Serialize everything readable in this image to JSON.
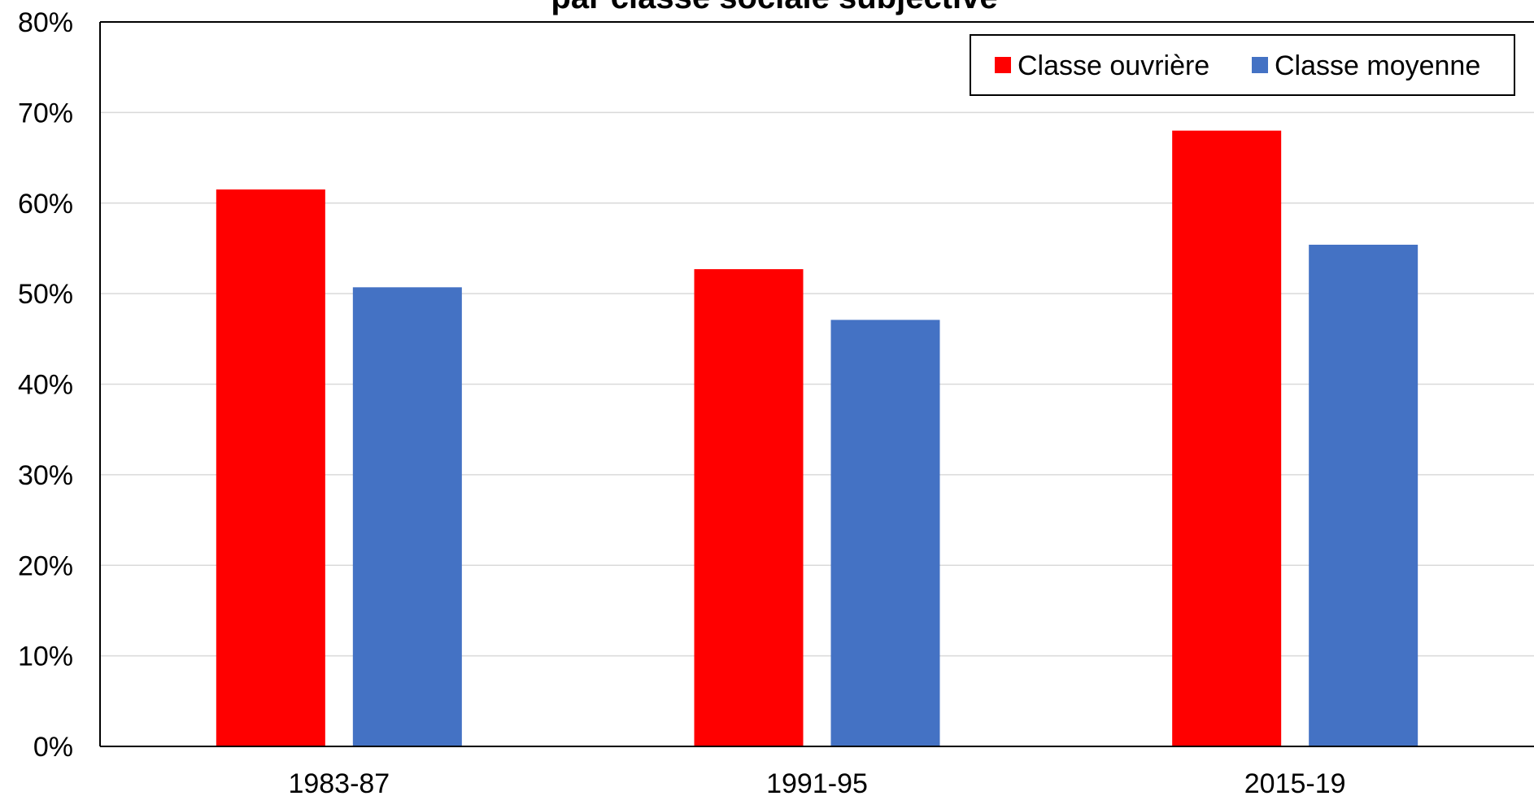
{
  "chart_data": {
    "type": "bar",
    "title": "par classe sociale subjective",
    "categories": [
      "1983-87",
      "1991-95",
      "2015-19"
    ],
    "series": [
      {
        "name": "Classe ouvrière",
        "color": "#ff0000",
        "values": [
          61.5,
          52.7,
          68.0
        ]
      },
      {
        "name": "Classe moyenne",
        "color": "#4472c4",
        "values": [
          50.7,
          47.1,
          55.4
        ]
      }
    ],
    "ylim": [
      0,
      80
    ],
    "yticks": [
      "0%",
      "10%",
      "20%",
      "30%",
      "40%",
      "50%",
      "60%",
      "70%",
      "80%"
    ],
    "grid": true,
    "legend_position": "top-right"
  }
}
